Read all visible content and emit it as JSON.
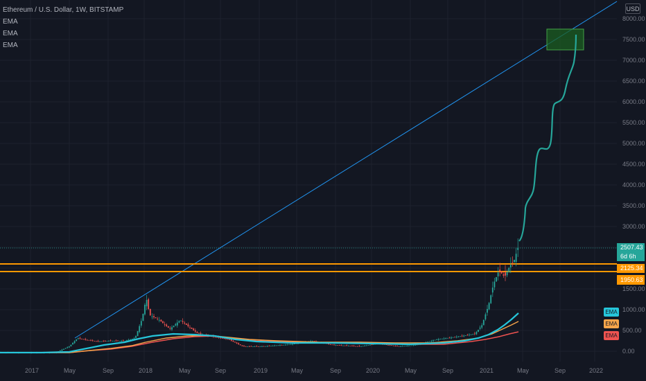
{
  "legend": {
    "symbol_title": "Ethereum / U.S. Dollar, 1W, BITSTAMP",
    "indicators": [
      "EMA",
      "EMA",
      "EMA"
    ]
  },
  "currency_label": "USD",
  "y_axis": {
    "ticks": [
      "8000.00",
      "7500.00",
      "7000.00",
      "6500.00",
      "6000.00",
      "5500.00",
      "5000.00",
      "4500.00",
      "4000.00",
      "3500.00",
      "3000.00",
      "2500.00",
      "2000.00",
      "1500.00",
      "1000.00",
      "500.00",
      "0.00"
    ]
  },
  "x_axis": {
    "ticks": [
      "2017",
      "May",
      "Sep",
      "2018",
      "May",
      "Sep",
      "2019",
      "May",
      "Sep",
      "2020",
      "May",
      "Sep",
      "2021",
      "May",
      "Sep",
      "2022"
    ]
  },
  "price_tags": {
    "last_price": "2507.43",
    "countdown": "6d 6h",
    "level_upper": "2125.34",
    "level_lower": "1950.63"
  },
  "ema_tags": [
    "EMA",
    "EMA",
    "EMA"
  ],
  "colors": {
    "background": "#131722",
    "candle_up": "#26a69a",
    "candle_down": "#ef5350",
    "ema_fast": "#26c6da",
    "ema_mid": "#f7a54a",
    "ema_slow": "#ef5350",
    "level_lines": "#ff9800",
    "trendline": "#2196f3",
    "projection": "#26a69a",
    "target_box": "#1b5e20"
  },
  "chart_data": {
    "type": "candlestick",
    "title": "Ethereum / U.S. Dollar, 1W, BITSTAMP",
    "ylim": [
      0,
      8500
    ],
    "horizontal_levels": [
      2125.34,
      1950.63
    ],
    "last_price": 2507.43
  }
}
